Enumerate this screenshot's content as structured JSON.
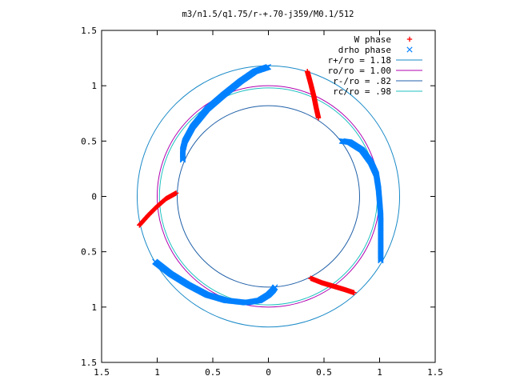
{
  "chart_data": {
    "type": "scatter",
    "title": "m3/n1.5/q1.75/r-+.70-j359/M0.1/512",
    "xlabel": "",
    "ylabel": "",
    "xlim": [
      -1.5,
      1.5
    ],
    "ylim": [
      -1.5,
      1.5
    ],
    "x_ticks": [
      {
        "value": -1.5,
        "label": "1.5"
      },
      {
        "value": -1.0,
        "label": "1"
      },
      {
        "value": -0.5,
        "label": "0.5"
      },
      {
        "value": 0,
        "label": "0"
      },
      {
        "value": 0.5,
        "label": "0.5"
      },
      {
        "value": 1.0,
        "label": "1"
      },
      {
        "value": 1.5,
        "label": "1.5"
      }
    ],
    "y_ticks": [
      {
        "value": 1.5,
        "label": "1.5"
      },
      {
        "value": 1.0,
        "label": "1"
      },
      {
        "value": 0.5,
        "label": "0.5"
      },
      {
        "value": 0,
        "label": "0"
      },
      {
        "value": -0.5,
        "label": "0.5"
      },
      {
        "value": -1.0,
        "label": "1"
      },
      {
        "value": -1.5,
        "label": "1.5"
      }
    ],
    "grid": false,
    "legend_position": "top-right",
    "series": [
      {
        "name": "W phase",
        "marker": "+",
        "color": "#ff0000",
        "segments": [
          [
            [
              0.35,
              1.13
            ],
            [
              0.38,
              1.02
            ],
            [
              0.41,
              0.9
            ],
            [
              0.43,
              0.8
            ],
            [
              0.45,
              0.71
            ]
          ],
          [
            [
              -1.16,
              -0.26
            ],
            [
              -1.08,
              -0.17
            ],
            [
              -1.0,
              -0.09
            ],
            [
              -0.92,
              -0.02
            ],
            [
              -0.83,
              0.03
            ]
          ],
          [
            [
              0.38,
              -0.74
            ],
            [
              0.48,
              -0.78
            ],
            [
              0.58,
              -0.81
            ],
            [
              0.68,
              -0.84
            ],
            [
              0.77,
              -0.87
            ]
          ]
        ]
      },
      {
        "name": "drho phase",
        "marker": "x",
        "color": "#0080ff",
        "segments": [
          [
            [
              0.0,
              1.17
            ],
            [
              -0.12,
              1.13
            ],
            [
              -0.25,
              1.04
            ],
            [
              -0.4,
              0.92
            ],
            [
              -0.55,
              0.79
            ],
            [
              -0.68,
              0.63
            ],
            [
              -0.75,
              0.5
            ],
            [
              -0.77,
              0.42
            ],
            [
              -0.77,
              0.33
            ]
          ],
          [
            [
              0.66,
              0.5
            ],
            [
              0.73,
              0.49
            ],
            [
              0.84,
              0.42
            ],
            [
              0.92,
              0.31
            ],
            [
              0.97,
              0.2
            ],
            [
              0.99,
              0.07
            ],
            [
              1.0,
              -0.05
            ],
            [
              1.01,
              -0.18
            ],
            [
              1.01,
              -0.3
            ],
            [
              1.01,
              -0.42
            ],
            [
              1.01,
              -0.58
            ]
          ],
          [
            [
              -1.02,
              -0.59
            ],
            [
              -0.88,
              -0.7
            ],
            [
              -0.72,
              -0.8
            ],
            [
              -0.55,
              -0.89
            ],
            [
              -0.38,
              -0.94
            ],
            [
              -0.2,
              -0.96
            ],
            [
              -0.08,
              -0.94
            ],
            [
              0.0,
              -0.89
            ],
            [
              0.04,
              -0.85
            ],
            [
              0.06,
              -0.82
            ]
          ]
        ]
      }
    ],
    "circles": [
      {
        "name": "r+/ro = 1.18",
        "radius": 1.18,
        "color": "#1a8ac8"
      },
      {
        "name": "ro/ro = 1.00",
        "radius": 1.0,
        "color": "#b000b0"
      },
      {
        "name": "r-/ro = .82",
        "radius": 0.82,
        "color": "#2060a8"
      },
      {
        "name": "rc/ro = .98",
        "radius": 0.98,
        "color": "#20c0c0"
      }
    ]
  }
}
